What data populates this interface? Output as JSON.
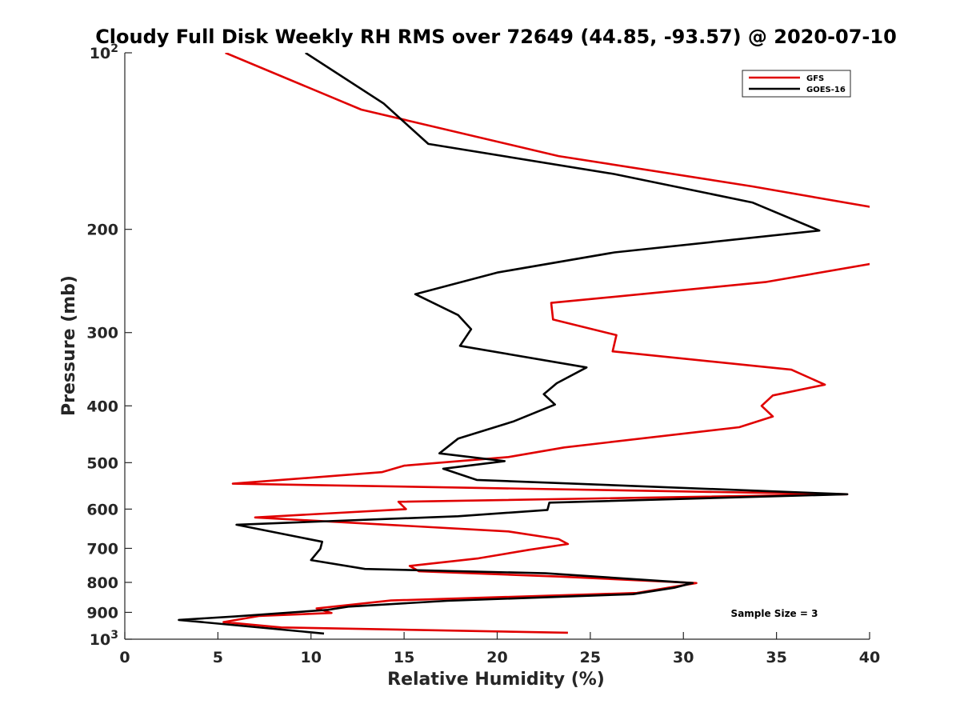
{
  "chart_data": {
    "type": "line",
    "title": "Cloudy Full Disk Weekly RH RMS over 72649 (44.85, -93.57) @ 2020-07-10",
    "xlabel": "Relative Humidity (%)",
    "ylabel": "Pressure (mb)",
    "xlim": [
      0,
      40
    ],
    "ylim": [
      100,
      1000
    ],
    "y_scale": "log",
    "y_reversed": true,
    "grid": false,
    "legend_position": "top-right",
    "x_ticks": [
      "0",
      "5",
      "10",
      "15",
      "20",
      "25",
      "30",
      "35",
      "40"
    ],
    "y_ticks": [
      {
        "value": 100,
        "label": "10",
        "sup": "2"
      },
      {
        "value": 200,
        "label": "200",
        "sup": ""
      },
      {
        "value": 300,
        "label": "300",
        "sup": ""
      },
      {
        "value": 400,
        "label": "400",
        "sup": ""
      },
      {
        "value": 500,
        "label": "500",
        "sup": ""
      },
      {
        "value": 600,
        "label": "600",
        "sup": ""
      },
      {
        "value": 700,
        "label": "700",
        "sup": ""
      },
      {
        "value": 800,
        "label": "800",
        "sup": ""
      },
      {
        "value": 900,
        "label": "900",
        "sup": ""
      },
      {
        "value": 1000,
        "label": "10",
        "sup": "3"
      }
    ],
    "annotation": "Sample Size = 3",
    "series": [
      {
        "name": "GFS",
        "color": "#e00000",
        "points": [
          [
            5.4,
            100
          ],
          [
            12.7,
            125
          ],
          [
            23.3,
            150
          ],
          [
            33.7,
            169
          ],
          [
            40.4,
            184
          ],
          [
            40.4,
            228
          ],
          [
            34.4,
            246
          ],
          [
            22.9,
            267
          ],
          [
            23.0,
            285
          ],
          [
            26.4,
            303
          ],
          [
            26.2,
            323
          ],
          [
            35.8,
            347
          ],
          [
            37.6,
            368
          ],
          [
            34.8,
            384
          ],
          [
            34.2,
            400
          ],
          [
            34.8,
            417
          ],
          [
            33.0,
            435
          ],
          [
            23.6,
            471
          ],
          [
            20.6,
            489
          ],
          [
            15.0,
            506
          ],
          [
            13.8,
            519
          ],
          [
            5.8,
            543
          ],
          [
            38.8,
            566
          ],
          [
            14.7,
            583
          ],
          [
            15.1,
            600
          ],
          [
            7.0,
            620
          ],
          [
            20.6,
            655
          ],
          [
            23.3,
            675
          ],
          [
            23.8,
            688
          ],
          [
            21.7,
            704
          ],
          [
            19.0,
            728
          ],
          [
            15.3,
            750
          ],
          [
            15.8,
            766
          ],
          [
            23.3,
            782
          ],
          [
            30.7,
            802
          ],
          [
            27.5,
            834
          ],
          [
            14.3,
            859
          ],
          [
            10.3,
            886
          ],
          [
            11.1,
            902
          ],
          [
            7.2,
            913
          ],
          [
            5.3,
            935
          ],
          [
            8.4,
            955
          ],
          [
            23.8,
            975
          ]
        ]
      },
      {
        "name": "GOES-16",
        "color": "#000000",
        "points": [
          [
            9.7,
            100
          ],
          [
            13.9,
            122
          ],
          [
            16.3,
            143
          ],
          [
            26.3,
            161
          ],
          [
            33.7,
            180
          ],
          [
            37.3,
            201
          ],
          [
            26.3,
            219
          ],
          [
            20.0,
            237
          ],
          [
            15.6,
            258
          ],
          [
            17.9,
            280
          ],
          [
            18.6,
            296
          ],
          [
            18.0,
            316
          ],
          [
            24.8,
            344
          ],
          [
            23.2,
            366
          ],
          [
            22.5,
            382
          ],
          [
            23.1,
            398
          ],
          [
            20.9,
            425
          ],
          [
            17.9,
            455
          ],
          [
            16.9,
            482
          ],
          [
            20.4,
            497
          ],
          [
            17.1,
            512
          ],
          [
            18.9,
            535
          ],
          [
            38.8,
            566
          ],
          [
            22.8,
            585
          ],
          [
            22.7,
            602
          ],
          [
            17.9,
            617
          ],
          [
            6.0,
            638
          ],
          [
            10.6,
            682
          ],
          [
            10.5,
            701
          ],
          [
            10.0,
            733
          ],
          [
            12.9,
            759
          ],
          [
            22.6,
            772
          ],
          [
            30.5,
            802
          ],
          [
            29.5,
            817
          ],
          [
            27.3,
            838
          ],
          [
            17.3,
            860
          ],
          [
            12.0,
            880
          ],
          [
            10.9,
            891
          ],
          [
            6.0,
            914
          ],
          [
            2.9,
            927
          ],
          [
            10.7,
            978
          ]
        ]
      }
    ]
  }
}
